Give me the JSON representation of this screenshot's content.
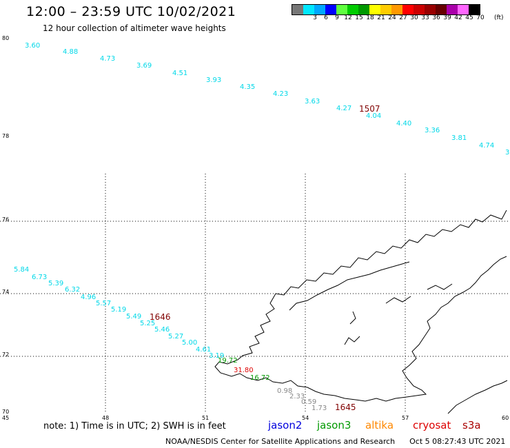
{
  "header": {
    "title": "12:00 – 23:59 UTC 10/02/2021",
    "subtitle": "12 hour collection of altimeter wave heights"
  },
  "legend": {
    "unit": "(ft)",
    "items": [
      {
        "label": "",
        "color": "#777777"
      },
      {
        "label": "3",
        "color": "#00e8ff"
      },
      {
        "label": "6",
        "color": "#00a8ff"
      },
      {
        "label": "9",
        "color": "#0000ff"
      },
      {
        "label": "12",
        "color": "#60ff40"
      },
      {
        "label": "15",
        "color": "#00cc00"
      },
      {
        "label": "18",
        "color": "#009900"
      },
      {
        "label": "21",
        "color": "#ffff00"
      },
      {
        "label": "24",
        "color": "#ffcc00"
      },
      {
        "label": "27",
        "color": "#ff9900"
      },
      {
        "label": "30",
        "color": "#ff0000"
      },
      {
        "label": "33",
        "color": "#cc0000"
      },
      {
        "label": "36",
        "color": "#990000"
      },
      {
        "label": "39",
        "color": "#660000"
      },
      {
        "label": "42",
        "color": "#aa00aa"
      },
      {
        "label": "45",
        "color": "#ff66ff"
      },
      {
        "label": "70",
        "color": "#000000"
      }
    ]
  },
  "axes": {
    "lat_labels": [
      "80",
      "78",
      "76",
      "74",
      "72",
      "70"
    ],
    "lon_labels": [
      "45",
      "48",
      "51",
      "54",
      "57",
      "60"
    ]
  },
  "tracks": [
    {
      "time": "1507",
      "time_color": "#800000",
      "values": [
        {
          "v": "3.60",
          "c": "#00d8e8"
        },
        {
          "v": "4.88",
          "c": "#00d8e8"
        },
        {
          "v": "4.73",
          "c": "#00d8e8"
        },
        {
          "v": "3.69",
          "c": "#00d8e8"
        },
        {
          "v": "4.51",
          "c": "#00d8e8"
        },
        {
          "v": "3.93",
          "c": "#00d8e8"
        },
        {
          "v": "4.35",
          "c": "#00d8e8"
        },
        {
          "v": "4.23",
          "c": "#00d8e8"
        },
        {
          "v": "3.63",
          "c": "#00d8e8"
        },
        {
          "v": "4.27",
          "c": "#00d8e8"
        },
        {
          "v": "4.04",
          "c": "#00d8e8"
        },
        {
          "v": "4.40",
          "c": "#00d8e8"
        },
        {
          "v": "3.36",
          "c": "#00d8e8"
        },
        {
          "v": "3.81",
          "c": "#00d8e8"
        },
        {
          "v": "4.74",
          "c": "#00d8e8"
        },
        {
          "v": "3",
          "c": "#00d8e8"
        }
      ]
    },
    {
      "time": "1646",
      "time_color": "#800000",
      "values": [
        {
          "v": "5.84",
          "c": "#00d8e8"
        },
        {
          "v": "6.73",
          "c": "#00d8e8"
        },
        {
          "v": "5.39",
          "c": "#00d8e8"
        },
        {
          "v": "6.32",
          "c": "#00d8e8"
        },
        {
          "v": "4.96",
          "c": "#00d8e8"
        },
        {
          "v": "5.57",
          "c": "#00d8e8"
        },
        {
          "v": "5.19",
          "c": "#00d8e8"
        },
        {
          "v": "5.49",
          "c": "#00d8e8"
        },
        {
          "v": "5.25",
          "c": "#00d8e8"
        },
        {
          "v": "5.46",
          "c": "#00d8e8"
        },
        {
          "v": "5.27",
          "c": "#00d8e8"
        },
        {
          "v": "5.00",
          "c": "#00d8e8"
        },
        {
          "v": "4.61",
          "c": "#00d8e8"
        },
        {
          "v": "3.19",
          "c": "#00d8e8"
        },
        {
          "v": "19.72",
          "c": "#009900"
        },
        {
          "v": "31.80",
          "c": "#dd0000"
        },
        {
          "v": "16.72",
          "c": "#009900"
        }
      ]
    },
    {
      "time": "1645",
      "time_color": "#800000",
      "values": [
        {
          "v": "0.98",
          "c": "#888888"
        },
        {
          "v": "2.33",
          "c": "#888888"
        },
        {
          "v": "0.59",
          "c": "#888888"
        },
        {
          "v": "1.73",
          "c": "#888888"
        }
      ]
    }
  ],
  "footer": {
    "note": "note: 1) Time is in UTC; 2) SWH is in feet",
    "satellites": [
      {
        "name": "jason2",
        "color": "#0000dd"
      },
      {
        "name": "jason3",
        "color": "#009900"
      },
      {
        "name": "altika",
        "color": "#ff8800"
      },
      {
        "name": "cryosat",
        "color": "#dd0000"
      },
      {
        "name": "s3a",
        "color": "#aa0000"
      }
    ],
    "credit": "NOAA/NESDIS Center for Satellite Applications and Research",
    "timestamp": "Oct  5 08:27:43 UTC 2021"
  }
}
